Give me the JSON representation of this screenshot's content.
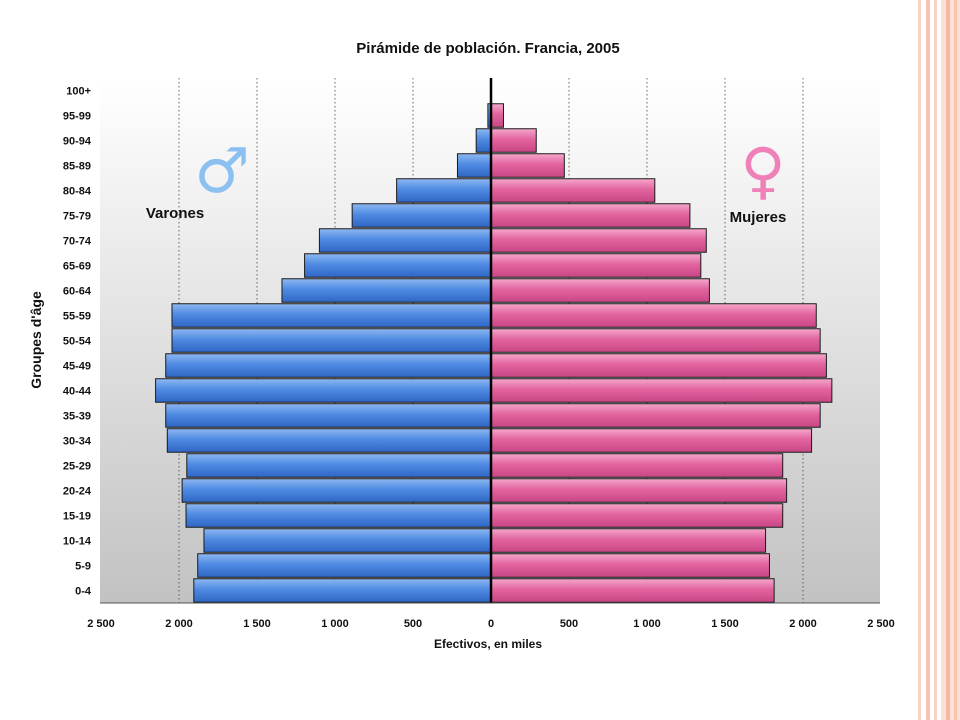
{
  "chart_data": {
    "type": "bar",
    "orientation": "horizontal-population-pyramid",
    "title": "Pirámide de población. Francia, 2005",
    "xlabel": "Efectivos, en miles",
    "ylabel": "Groupes d'âge",
    "xlim": [
      -2500,
      2500
    ],
    "x_ticks": [
      -2500,
      -2000,
      -1500,
      -1000,
      -500,
      0,
      500,
      1000,
      1500,
      2000,
      2500
    ],
    "x_tick_labels": [
      "2 500",
      "2 000",
      "1 500",
      "1 000",
      "500",
      "0",
      "500",
      "1 000",
      "1 500",
      "2 000",
      "2 500"
    ],
    "grid": "vertical dashed",
    "categories": [
      "100+",
      "95-99",
      "90-94",
      "85-89",
      "80-84",
      "75-79",
      "70-74",
      "65-69",
      "60-64",
      "55-59",
      "50-54",
      "45-49",
      "40-44",
      "35-39",
      "30-34",
      "25-29",
      "20-24",
      "15-19",
      "10-14",
      "5-9",
      "0-4"
    ],
    "series": [
      {
        "name": "Varones",
        "side": "left",
        "color": "#4a86e0",
        "values": [
          0,
          20,
          95,
          215,
          605,
          890,
          1100,
          1195,
          1340,
          2045,
          2045,
          2085,
          2150,
          2085,
          2075,
          1950,
          1980,
          1955,
          1840,
          1880,
          1905
        ]
      },
      {
        "name": "Mujeres",
        "side": "right",
        "color": "#e0609e",
        "values": [
          0,
          80,
          290,
          470,
          1050,
          1275,
          1380,
          1345,
          1400,
          2085,
          2110,
          2150,
          2185,
          2110,
          2055,
          1870,
          1895,
          1870,
          1760,
          1785,
          1815
        ]
      }
    ],
    "annotations": {
      "male_label": "Varones",
      "female_label": "Mujeres",
      "male_symbol": "♂",
      "female_symbol": "♀",
      "male_symbol_color": "#8cc0f0",
      "female_symbol_color": "#f080b8"
    }
  },
  "colors": {
    "background_top": "#ffffff",
    "background_bottom": "#c4c4c4",
    "border_stripes": "#f6c9b8"
  }
}
